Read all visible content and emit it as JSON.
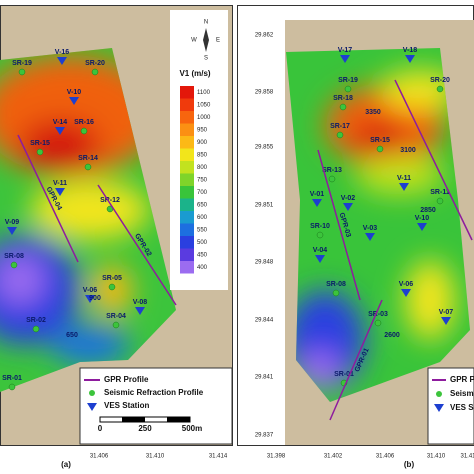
{
  "panels": [
    {
      "label": "(a)",
      "colorbar": {
        "title": "V1 (m/s)",
        "ticks": [
          1100,
          1050,
          1000,
          950,
          900,
          850,
          800,
          750,
          700,
          650,
          600,
          550,
          500,
          450,
          400
        ],
        "colors": [
          "#e3170a",
          "#f03a0c",
          "#f7650e",
          "#fb9013",
          "#fcb916",
          "#f2e51b",
          "#c2e21f",
          "#7fd42a",
          "#39c43a",
          "#1bb38a",
          "#1a9bd0",
          "#1d6fe0",
          "#2a3fe0",
          "#5a3be0",
          "#9b6cf0"
        ]
      },
      "compass": [
        "N",
        "S",
        "E",
        "W"
      ],
      "stations": [
        "SR-19",
        "SR-20",
        "V-16",
        "V-10",
        "V-14",
        "SR-16",
        "SR-15",
        "SR-14",
        "V-11",
        "SR-12",
        "V-09",
        "SR-08",
        "SR-05",
        "V-06",
        "V-08",
        "SR-04",
        "SR-02",
        "SR-01"
      ],
      "profiles": [
        "GPR-04",
        "GPR-02"
      ],
      "contour_labels": [
        "900",
        "650"
      ],
      "x_ticks": [
        "31.406",
        "31.410",
        "31.414"
      ],
      "legend": [
        "GPR Profile",
        "Seismic Refraction Profile",
        "VES Station"
      ],
      "scale": [
        "0",
        "250",
        "500m"
      ]
    },
    {
      "label": "(b)",
      "y_ticks": [
        "29.862",
        "29.858",
        "29.855",
        "29.851",
        "29.848",
        "29.844",
        "29.841",
        "29.837"
      ],
      "x_ticks": [
        "31.398",
        "31.402",
        "31.406",
        "31.410",
        "31.41"
      ],
      "stations": [
        "V-17",
        "SR-19",
        "V-18",
        "SR-20",
        "SR-18",
        "SR-17",
        "SR-15",
        "SR-13",
        "V-11",
        "V-01",
        "V-02",
        "SR-11",
        "SR-10",
        "V-03",
        "V-10",
        "V-04",
        "SR-08",
        "V-06",
        "SR-03",
        "V-07",
        "SR-01"
      ],
      "profiles": [
        "GPR-03",
        "GPR-01"
      ],
      "contour_labels": [
        "3350",
        "3100",
        "2850",
        "2600"
      ],
      "legend": [
        "GPR P",
        "Seismic",
        "VES S"
      ]
    }
  ]
}
